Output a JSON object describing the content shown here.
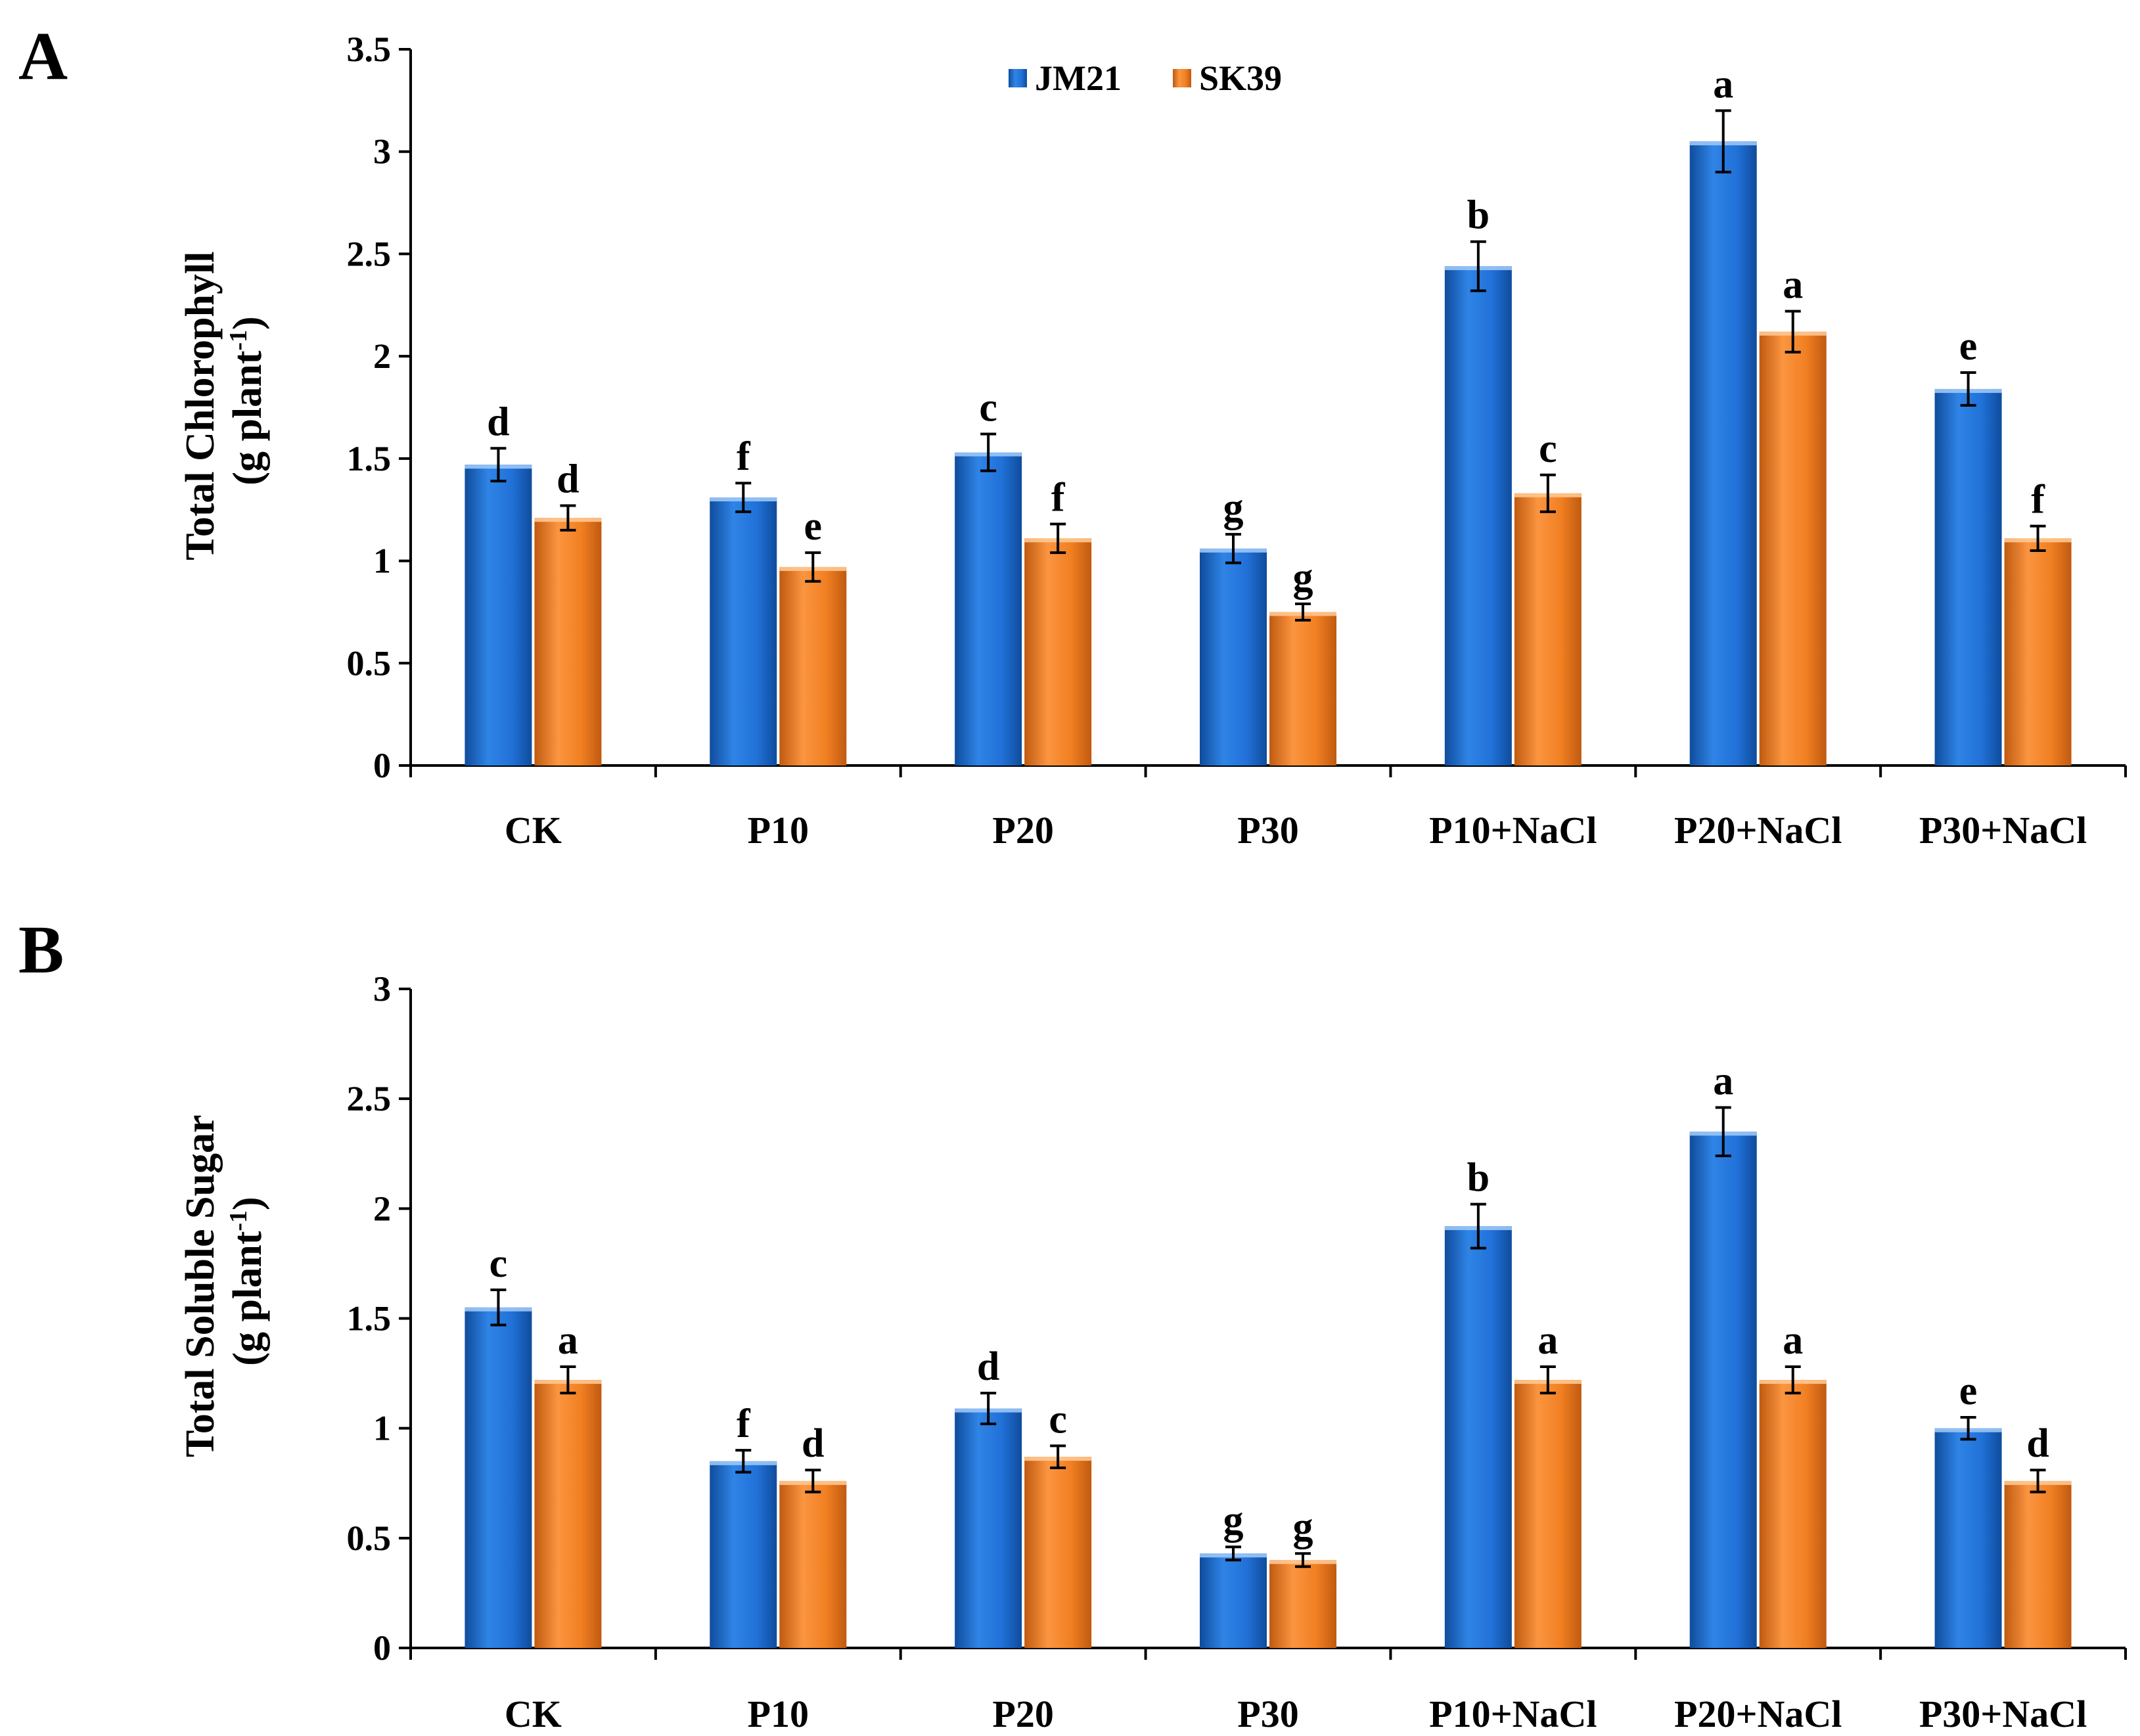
{
  "colors": {
    "series_1": "#1f6fd6",
    "series_1_dark": "#134a9a",
    "series_2": "#f07f22",
    "series_2_dark": "#b7560e",
    "axis": "#000000"
  },
  "legend": [
    "JM21",
    "SK39"
  ],
  "chart_data": [
    {
      "panel": "A",
      "type": "bar",
      "title": "",
      "ylabel_line1": "Total Chlorophyll",
      "ylabel_line2_prefix": "(g plant",
      "ylabel_line2_sup": "-1",
      "ylabel_line2_suffix": ")",
      "xlabel": "",
      "ylim": [
        0,
        3.5
      ],
      "yticks": [
        0,
        0.5,
        1,
        1.5,
        2,
        2.5,
        3,
        3.5
      ],
      "ytick_labels": [
        "0",
        "0.5",
        "1",
        "1.5",
        "2",
        "2.5",
        "3",
        "3.5"
      ],
      "categories": [
        "CK",
        "P10",
        "P20",
        "P30",
        "P10+NaCl",
        "P20+NaCl",
        "P30+NaCl"
      ],
      "series": [
        {
          "name": "JM21",
          "values": [
            1.47,
            1.31,
            1.53,
            1.06,
            2.44,
            3.05,
            1.84
          ],
          "errors": [
            0.08,
            0.07,
            0.09,
            0.07,
            0.12,
            0.15,
            0.08
          ],
          "labels": [
            "d",
            "f",
            "c",
            "g",
            "b",
            "a",
            "e"
          ]
        },
        {
          "name": "SK39",
          "values": [
            1.21,
            0.97,
            1.11,
            0.75,
            1.33,
            2.12,
            1.11
          ],
          "errors": [
            0.06,
            0.07,
            0.07,
            0.04,
            0.09,
            0.1,
            0.06
          ],
          "labels": [
            "d",
            "e",
            "f",
            "g",
            "c",
            "a",
            "f"
          ]
        }
      ]
    },
    {
      "panel": "B",
      "type": "bar",
      "title": "",
      "ylabel_line1": "Total Soluble Sugar",
      "ylabel_line2_prefix": "(g plant",
      "ylabel_line2_sup": "-1",
      "ylabel_line2_suffix": ")",
      "xlabel": "",
      "ylim": [
        0,
        3
      ],
      "yticks": [
        0,
        0.5,
        1,
        1.5,
        2,
        2.5,
        3
      ],
      "ytick_labels": [
        "0",
        "0.5",
        "1",
        "1.5",
        "2",
        "2.5",
        "3"
      ],
      "categories": [
        "CK",
        "P10",
        "P20",
        "P30",
        "P10+NaCl",
        "P20+NaCl",
        "P30+NaCl"
      ],
      "series": [
        {
          "name": "JM21",
          "values": [
            1.55,
            0.85,
            1.09,
            0.43,
            1.92,
            2.35,
            1.0
          ],
          "errors": [
            0.08,
            0.05,
            0.07,
            0.03,
            0.1,
            0.11,
            0.05
          ],
          "labels": [
            "c",
            "f",
            "d",
            "g",
            "b",
            "a",
            "e"
          ]
        },
        {
          "name": "SK39",
          "values": [
            1.22,
            0.76,
            0.87,
            0.4,
            1.22,
            1.22,
            0.76
          ],
          "errors": [
            0.06,
            0.05,
            0.05,
            0.03,
            0.06,
            0.06,
            0.05
          ],
          "labels": [
            "a",
            "d",
            "c",
            "g",
            "a",
            "a",
            "d"
          ]
        }
      ]
    }
  ]
}
